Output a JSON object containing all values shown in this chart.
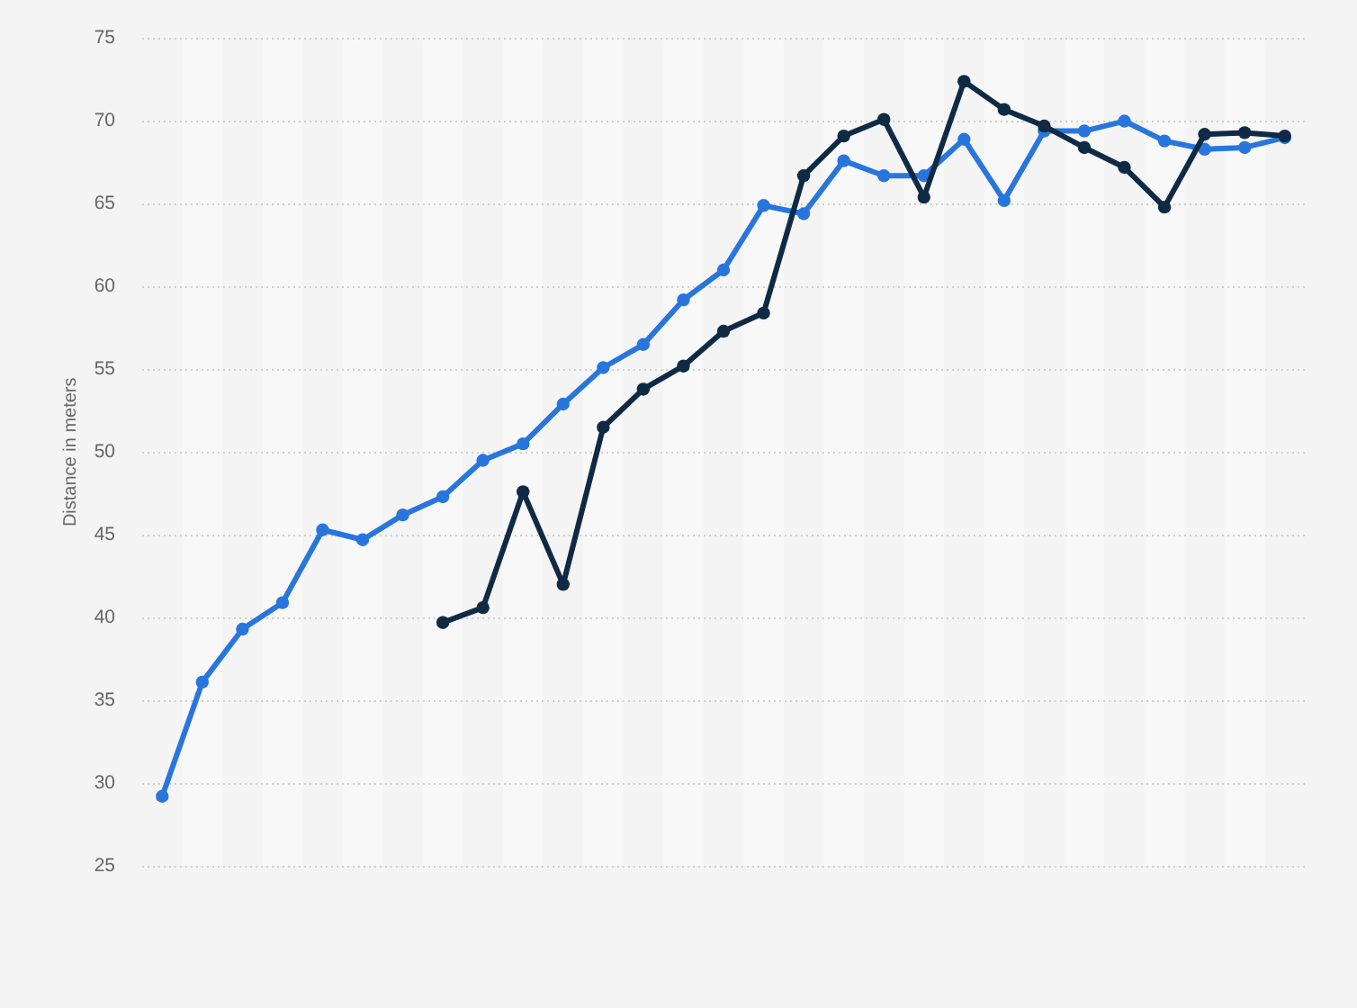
{
  "chart_data": {
    "type": "line",
    "ylabel": "Distance in meters",
    "categories": [
      null,
      null,
      null,
      null,
      null,
      null,
      null,
      null,
      null,
      null,
      null,
      null,
      null,
      null,
      null,
      null,
      null,
      null,
      null,
      null,
      null,
      null,
      null,
      null,
      null,
      null,
      null,
      null,
      null
    ],
    "series": [
      {
        "color": "#2876dd",
        "values": [
          29.2,
          36.1,
          39.3,
          40.9,
          45.3,
          44.7,
          46.2,
          47.3,
          49.5,
          50.5,
          52.9,
          55.1,
          56.5,
          59.2,
          61.0,
          64.9,
          64.4,
          67.6,
          66.7,
          66.7,
          68.9,
          65.2,
          69.4,
          69.4,
          70.0,
          68.8,
          68.3,
          68.4,
          69.0
        ]
      },
      {
        "color": "#0f2a44",
        "values": [
          null,
          null,
          null,
          null,
          null,
          null,
          null,
          39.7,
          40.6,
          47.6,
          42.0,
          51.5,
          53.8,
          55.2,
          57.3,
          58.4,
          66.7,
          69.1,
          70.1,
          65.4,
          72.4,
          70.7,
          69.7,
          68.4,
          67.2,
          64.8,
          69.2,
          69.3,
          69.1
        ]
      }
    ],
    "ylim": [
      25,
      75
    ],
    "yticks": [
      25,
      30,
      35,
      40,
      45,
      50,
      55,
      60,
      65,
      70,
      75
    ],
    "grid": "y",
    "legend": false,
    "tick_labels": "y",
    "marker": "circle",
    "line_style": "solid"
  }
}
